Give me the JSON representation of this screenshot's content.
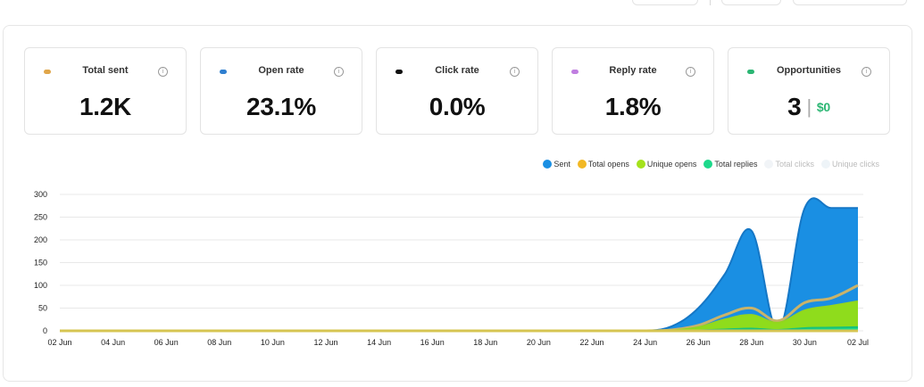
{
  "cards": [
    {
      "title": "Total sent",
      "value": "1.2K",
      "dot_color": "#e0a64a",
      "info_icon": "info-icon"
    },
    {
      "title": "Open rate",
      "value": "23.1%",
      "dot_color": "#2f7fd0",
      "info_icon": "info-icon"
    },
    {
      "title": "Click rate",
      "value": "0.0%",
      "dot_color": "#111111",
      "info_icon": "info-icon"
    },
    {
      "title": "Reply rate",
      "value": "1.8%",
      "dot_color": "#c07ee0",
      "info_icon": "info-icon"
    },
    {
      "title": "Opportunities",
      "value": "3",
      "separator": "|",
      "money": "$0",
      "dot_color": "#2bb673",
      "info_icon": "info-icon"
    }
  ],
  "legend": [
    {
      "name": "Sent",
      "color": "#1a8fe3",
      "active": true
    },
    {
      "name": "Total opens",
      "color": "#f2b824",
      "active": true
    },
    {
      "name": "Unique opens",
      "color": "#a4e21c",
      "active": true
    },
    {
      "name": "Total replies",
      "color": "#1dd98b",
      "active": true
    },
    {
      "name": "Total clicks",
      "color": "#f1f4f7",
      "active": false
    },
    {
      "name": "Unique clicks",
      "color": "#eef4f8",
      "active": false
    }
  ],
  "chart_data": {
    "type": "area",
    "x": [
      "02 Jun",
      "03 Jun",
      "04 Jun",
      "05 Jun",
      "06 Jun",
      "07 Jun",
      "08 Jun",
      "09 Jun",
      "10 Jun",
      "11 Jun",
      "12 Jun",
      "13 Jun",
      "14 Jun",
      "15 Jun",
      "16 Jun",
      "17 Jun",
      "18 Jun",
      "19 Jun",
      "20 Jun",
      "21 Jun",
      "22 Jun",
      "23 Jun",
      "24 Jun",
      "25 Jun",
      "26 Jun",
      "27 Jun",
      "28 Jun",
      "29 Jun",
      "30 Jun",
      "01 Jul",
      "02 Jul"
    ],
    "x_tick_labels": [
      "02 Jun",
      "04 Jun",
      "06 Jun",
      "08 Jun",
      "10 Jun",
      "12 Jun",
      "14 Jun",
      "16 Jun",
      "18 Jun",
      "20 Jun",
      "22 Jun",
      "24 Jun",
      "26 Jun",
      "28 Jun",
      "30 Jun",
      "02 Jul"
    ],
    "ylim": [
      0,
      300
    ],
    "y_ticks": [
      0,
      50,
      100,
      150,
      200,
      250,
      300
    ],
    "grid": true,
    "legend_position": "top-right",
    "series": [
      {
        "name": "Sent",
        "color": "#1a8fe3",
        "values": [
          0,
          0,
          0,
          0,
          0,
          0,
          0,
          0,
          0,
          0,
          0,
          0,
          0,
          0,
          0,
          0,
          0,
          0,
          0,
          0,
          0,
          0,
          0,
          10,
          50,
          125,
          220,
          0,
          270,
          270,
          270
        ]
      },
      {
        "name": "Total opens",
        "color": "#d2b356",
        "values": [
          0,
          0,
          0,
          0,
          0,
          0,
          0,
          0,
          0,
          0,
          0,
          0,
          0,
          0,
          0,
          0,
          0,
          0,
          0,
          0,
          0,
          0,
          0,
          2,
          12,
          35,
          50,
          22,
          62,
          72,
          100
        ]
      },
      {
        "name": "Unique opens",
        "color": "#a4e21c",
        "values": [
          0,
          0,
          0,
          0,
          0,
          0,
          0,
          0,
          0,
          0,
          0,
          0,
          0,
          0,
          0,
          0,
          0,
          0,
          0,
          0,
          0,
          0,
          0,
          1,
          8,
          25,
          35,
          18,
          45,
          55,
          65
        ]
      },
      {
        "name": "Total replies",
        "color": "#1dd98b",
        "values": [
          0,
          0,
          0,
          0,
          0,
          0,
          0,
          0,
          0,
          0,
          0,
          0,
          0,
          0,
          0,
          0,
          0,
          0,
          0,
          0,
          0,
          0,
          0,
          0,
          1,
          3,
          5,
          2,
          6,
          7,
          8
        ]
      }
    ]
  }
}
